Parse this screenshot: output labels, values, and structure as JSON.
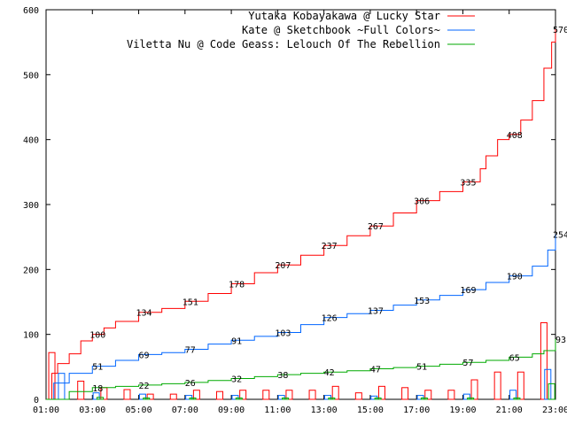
{
  "chart_data": {
    "type": "line",
    "xlim": [
      "01:00",
      "23:00"
    ],
    "ylim": [
      0,
      600
    ],
    "grid": false,
    "legend_placement": "top-right",
    "x_ticks": [
      "01:00",
      "03:00",
      "05:00",
      "07:00",
      "09:00",
      "11:00",
      "13:00",
      "15:00",
      "17:00",
      "19:00",
      "21:00",
      "23:00"
    ],
    "y_ticks": [
      "0",
      "100",
      "200",
      "300",
      "400",
      "500",
      "600"
    ],
    "series": [
      {
        "name": "Yutaka Kobayakawa @ Lucky Star",
        "color": "#ff0000",
        "cumulative": [
          [
            "01:00",
            0
          ],
          [
            "01:15",
            40
          ],
          [
            "01:30",
            55
          ],
          [
            "02:00",
            70
          ],
          [
            "02:30",
            90
          ],
          [
            "03:00",
            100
          ],
          [
            "03:30",
            110
          ],
          [
            "04:00",
            120
          ],
          [
            "05:00",
            134
          ],
          [
            "06:00",
            140
          ],
          [
            "07:00",
            151
          ],
          [
            "08:00",
            163
          ],
          [
            "09:00",
            178
          ],
          [
            "10:00",
            195
          ],
          [
            "11:00",
            207
          ],
          [
            "12:00",
            222
          ],
          [
            "13:00",
            237
          ],
          [
            "14:00",
            252
          ],
          [
            "15:00",
            267
          ],
          [
            "16:00",
            287
          ],
          [
            "17:00",
            306
          ],
          [
            "18:00",
            320
          ],
          [
            "19:00",
            335
          ],
          [
            "19:45",
            355
          ],
          [
            "20:00",
            375
          ],
          [
            "20:30",
            400
          ],
          [
            "21:00",
            408
          ],
          [
            "21:30",
            430
          ],
          [
            "22:00",
            460
          ],
          [
            "22:30",
            510
          ],
          [
            "22:50",
            550
          ],
          [
            "23:00",
            570
          ]
        ],
        "labels": [
          [
            "03:00",
            100
          ],
          [
            "05:00",
            134
          ],
          [
            "07:00",
            151
          ],
          [
            "09:00",
            178
          ],
          [
            "11:00",
            207
          ],
          [
            "13:00",
            237
          ],
          [
            "15:00",
            267
          ],
          [
            "17:00",
            306
          ],
          [
            "19:00",
            335
          ],
          [
            "21:00",
            408
          ],
          [
            "23:00",
            570
          ]
        ],
        "bars": [
          [
            "01:15",
            72
          ],
          [
            "02:30",
            28
          ],
          [
            "03:30",
            18
          ],
          [
            "04:30",
            15
          ],
          [
            "05:30",
            8
          ],
          [
            "06:30",
            8
          ],
          [
            "07:30",
            14
          ],
          [
            "08:30",
            12
          ],
          [
            "09:30",
            14
          ],
          [
            "10:30",
            14
          ],
          [
            "11:30",
            14
          ],
          [
            "12:30",
            14
          ],
          [
            "13:30",
            20
          ],
          [
            "14:30",
            10
          ],
          [
            "15:30",
            20
          ],
          [
            "16:30",
            18
          ],
          [
            "17:30",
            14
          ],
          [
            "18:30",
            14
          ],
          [
            "19:30",
            30
          ],
          [
            "20:30",
            42
          ],
          [
            "21:30",
            42
          ],
          [
            "22:30",
            118
          ]
        ]
      },
      {
        "name": "Kate @ Sketchbook ~Full Colors~",
        "color": "#0066ff",
        "cumulative": [
          [
            "01:00",
            0
          ],
          [
            "01:20",
            25
          ],
          [
            "02:00",
            40
          ],
          [
            "03:00",
            51
          ],
          [
            "04:00",
            60
          ],
          [
            "05:00",
            69
          ],
          [
            "06:00",
            72
          ],
          [
            "07:00",
            77
          ],
          [
            "08:00",
            85
          ],
          [
            "09:00",
            91
          ],
          [
            "10:00",
            97
          ],
          [
            "11:00",
            103
          ],
          [
            "12:00",
            115
          ],
          [
            "13:00",
            126
          ],
          [
            "14:00",
            132
          ],
          [
            "15:00",
            137
          ],
          [
            "16:00",
            145
          ],
          [
            "17:00",
            153
          ],
          [
            "18:00",
            160
          ],
          [
            "19:00",
            169
          ],
          [
            "20:00",
            180
          ],
          [
            "21:00",
            190
          ],
          [
            "22:00",
            205
          ],
          [
            "22:40",
            230
          ],
          [
            "23:00",
            254
          ]
        ],
        "labels": [
          [
            "03:00",
            51
          ],
          [
            "05:00",
            69
          ],
          [
            "07:00",
            77
          ],
          [
            "09:00",
            91
          ],
          [
            "11:00",
            103
          ],
          [
            "13:00",
            126
          ],
          [
            "15:00",
            137
          ],
          [
            "17:00",
            153
          ],
          [
            "19:00",
            169
          ],
          [
            "21:00",
            190
          ],
          [
            "23:00",
            254
          ]
        ],
        "bars": [
          [
            "01:40",
            40
          ],
          [
            "03:10",
            10
          ],
          [
            "05:10",
            8
          ],
          [
            "07:10",
            6
          ],
          [
            "09:10",
            6
          ],
          [
            "11:10",
            6
          ],
          [
            "13:10",
            6
          ],
          [
            "15:10",
            5
          ],
          [
            "17:10",
            6
          ],
          [
            "19:10",
            8
          ],
          [
            "21:10",
            14
          ],
          [
            "22:40",
            46
          ]
        ]
      },
      {
        "name": "Viletta Nu @ Code Geass: Lelouch Of The Rebellion",
        "color": "#00aa00",
        "cumulative": [
          [
            "01:00",
            0
          ],
          [
            "02:00",
            12
          ],
          [
            "03:00",
            18
          ],
          [
            "04:00",
            20
          ],
          [
            "05:00",
            22
          ],
          [
            "06:00",
            24
          ],
          [
            "07:00",
            26
          ],
          [
            "08:00",
            29
          ],
          [
            "09:00",
            32
          ],
          [
            "10:00",
            35
          ],
          [
            "11:00",
            38
          ],
          [
            "12:00",
            40
          ],
          [
            "13:00",
            42
          ],
          [
            "14:00",
            44
          ],
          [
            "15:00",
            47
          ],
          [
            "16:00",
            49
          ],
          [
            "17:00",
            51
          ],
          [
            "18:00",
            54
          ],
          [
            "19:00",
            57
          ],
          [
            "20:00",
            60
          ],
          [
            "21:00",
            65
          ],
          [
            "22:00",
            70
          ],
          [
            "22:30",
            75
          ],
          [
            "23:00",
            93
          ]
        ],
        "labels": [
          [
            "03:00",
            18
          ],
          [
            "05:00",
            22
          ],
          [
            "07:00",
            26
          ],
          [
            "09:00",
            32
          ],
          [
            "11:00",
            38
          ],
          [
            "13:00",
            42
          ],
          [
            "15:00",
            47
          ],
          [
            "17:00",
            51
          ],
          [
            "19:00",
            57
          ],
          [
            "21:00",
            65
          ],
          [
            "23:00",
            93
          ]
        ],
        "bars": [
          [
            "03:20",
            3
          ],
          [
            "05:20",
            2
          ],
          [
            "07:20",
            2
          ],
          [
            "09:20",
            2
          ],
          [
            "11:20",
            2
          ],
          [
            "13:20",
            2
          ],
          [
            "15:20",
            2
          ],
          [
            "17:20",
            2
          ],
          [
            "19:20",
            2
          ],
          [
            "21:20",
            2
          ],
          [
            "22:50",
            24
          ]
        ]
      }
    ]
  }
}
